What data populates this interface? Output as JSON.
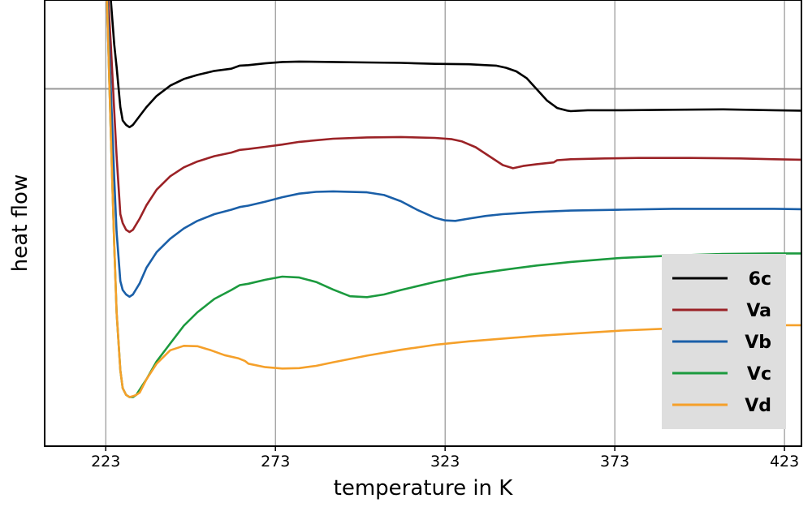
{
  "chart_data": {
    "type": "line",
    "xlabel": "temperature in K",
    "ylabel": "heat flow",
    "xlim": [
      205,
      428
    ],
    "ylim": [
      0,
      100
    ],
    "xticks": [
      223,
      273,
      323,
      373,
      423
    ],
    "xtick_labels": [
      "223",
      "273",
      "323",
      "373",
      "423"
    ],
    "grid": "vertical",
    "reference_line_y": 80.1,
    "legend_placement": "lower-right",
    "series": [
      {
        "name": "6c",
        "color": "#000000",
        "x": [
          223.0,
          224.5,
          225.5,
          226.2,
          227.3,
          228.0,
          229.0,
          230.0,
          231.0,
          233.0,
          235.0,
          238.0,
          242.0,
          246.0,
          250.0,
          255.0,
          260.0,
          262.5,
          265.0,
          270.0,
          275.0,
          280.0,
          290.0,
          300.0,
          310.0,
          320.0,
          330.0,
          335.0,
          338.0,
          341.0,
          344.0,
          347.0,
          350.0,
          353.0,
          356.0,
          359.0,
          360.0,
          365.0,
          375.0,
          390.0,
          405.0,
          420.0,
          428.0
        ],
        "y": [
          110,
          100,
          90,
          85,
          76,
          73,
          72,
          71.5,
          72,
          74,
          76,
          78.5,
          80.8,
          82.3,
          83.2,
          84.1,
          84.6,
          85.3,
          85.4,
          85.8,
          86.1,
          86.2,
          86.1,
          86,
          85.9,
          85.7,
          85.6,
          85.4,
          85.3,
          84.8,
          84,
          82.5,
          80,
          77.5,
          75.8,
          75.2,
          75.1,
          75.3,
          75.3,
          75.4,
          75.5,
          75.3,
          75.2
        ]
      },
      {
        "name": "Va",
        "color": "#9b2226",
        "x": [
          223.0,
          224.5,
          225.5,
          226.2,
          227.3,
          228.0,
          229.0,
          230.0,
          231.0,
          233.0,
          235.0,
          238.0,
          242.0,
          246.0,
          250.0,
          255.0,
          260.0,
          262.5,
          265.0,
          270.0,
          275.0,
          280.0,
          290.0,
          300.0,
          310.0,
          320.0,
          325.0,
          328.0,
          332.0,
          336.0,
          340.0,
          343.0,
          346.0,
          350.0,
          355.0,
          356.0,
          360.0,
          370.0,
          380.0,
          395.0,
          410.0,
          420.0,
          428.0
        ],
        "y": [
          110,
          90,
          75,
          65,
          52,
          50,
          48.5,
          48,
          48.5,
          51,
          54,
          57.5,
          60.5,
          62.5,
          63.8,
          65,
          65.8,
          66.4,
          66.6,
          67.1,
          67.6,
          68.2,
          68.9,
          69.2,
          69.3,
          69.1,
          68.8,
          68.3,
          67,
          65,
          63,
          62.3,
          62.8,
          63.2,
          63.6,
          64.1,
          64.3,
          64.5,
          64.6,
          64.6,
          64.5,
          64.3,
          64.2
        ]
      },
      {
        "name": "Vb",
        "color": "#1a5fa8",
        "x": [
          223.0,
          224.5,
          225.5,
          226.2,
          227.3,
          228.0,
          229.0,
          230.0,
          231.0,
          233.0,
          235.0,
          238.0,
          242.0,
          246.0,
          250.0,
          255.0,
          260.0,
          262.5,
          265.0,
          270.0,
          275.0,
          280.0,
          285.0,
          290.0,
          300.0,
          305.0,
          310.0,
          315.0,
          320.0,
          323.0,
          326.0,
          330.0,
          335.0,
          340.0,
          350.0,
          360.0,
          375.0,
          390.0,
          405.0,
          420.0,
          428.0
        ],
        "y": [
          110,
          80,
          60,
          48,
          37,
          35,
          34,
          33.5,
          34,
          36.5,
          40,
          43.5,
          46.5,
          48.8,
          50.5,
          52,
          53,
          53.6,
          53.9,
          54.8,
          55.8,
          56.6,
          57,
          57.1,
          56.9,
          56.3,
          54.9,
          52.9,
          51.2,
          50.6,
          50.5,
          51,
          51.6,
          52,
          52.5,
          52.8,
          53,
          53.2,
          53.2,
          53.2,
          53.1
        ]
      },
      {
        "name": "Vc",
        "color": "#1b9a3e",
        "x": [
          223.0,
          224.5,
          225.5,
          226.2,
          227.3,
          228.0,
          229.0,
          230.0,
          231.0,
          232.0,
          235.0,
          238.0,
          242.0,
          246.0,
          250.0,
          255.0,
          260.0,
          262.5,
          265.0,
          270.0,
          275.0,
          280.0,
          285.0,
          290.0,
          295.0,
          300.0,
          305.0,
          310.0,
          320.0,
          330.0,
          340.0,
          350.0,
          360.0,
          375.0,
          390.0,
          405.0,
          420.0,
          428.0
        ],
        "y": [
          110,
          70,
          45,
          30,
          17,
          13,
          11.5,
          11,
          11,
          11.5,
          15,
          19,
          23,
          27,
          30,
          33,
          35,
          36.1,
          36.4,
          37.3,
          38,
          37.8,
          36.8,
          35.1,
          33.6,
          33.4,
          34,
          35,
          36.8,
          38.4,
          39.5,
          40.5,
          41.3,
          42.2,
          42.7,
          43.1,
          43.2,
          43.2
        ]
      },
      {
        "name": "Vd",
        "color": "#f5a02a",
        "x": [
          223.0,
          224.5,
          225.5,
          226.2,
          227.3,
          228.0,
          229.0,
          230.0,
          231.0,
          232.0,
          233.0,
          235.0,
          238.0,
          242.0,
          246.0,
          250.0,
          254.0,
          258.0,
          262.0,
          264.0,
          265.0,
          270.0,
          275.0,
          280.0,
          285.0,
          290.0,
          300.0,
          310.0,
          320.0,
          330.0,
          340.0,
          350.0,
          360.0,
          375.0,
          390.0,
          405.0,
          420.0,
          428.0
        ],
        "y": [
          110,
          70,
          45,
          30,
          17,
          13,
          11.5,
          11,
          11.2,
          11.5,
          12,
          15,
          18.5,
          21.5,
          22.5,
          22.4,
          21.5,
          20.4,
          19.7,
          19.1,
          18.5,
          17.7,
          17.4,
          17.5,
          18,
          18.8,
          20.3,
          21.6,
          22.7,
          23.5,
          24.1,
          24.7,
          25.2,
          25.9,
          26.4,
          26.8,
          27.1,
          27.1
        ]
      }
    ]
  }
}
